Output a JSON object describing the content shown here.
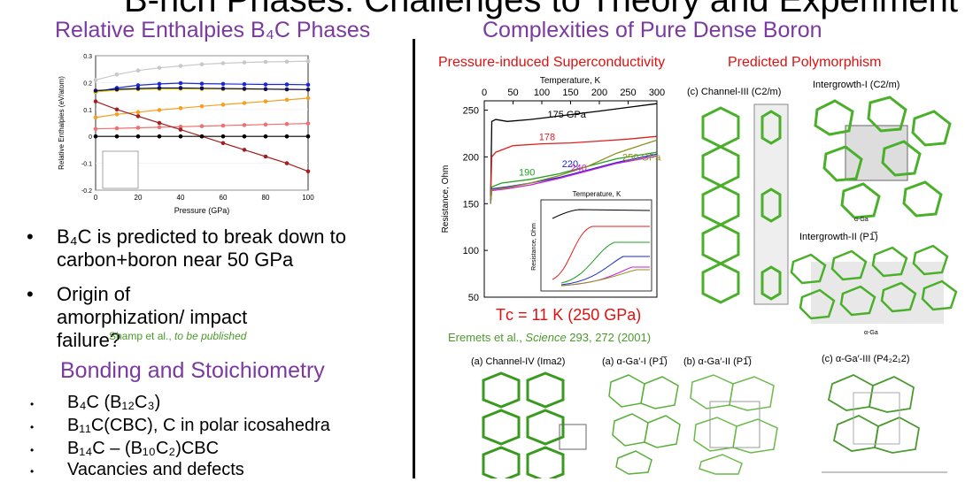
{
  "slide": {
    "title": "B-rich Phases: Challenges to Theory and Experiment"
  },
  "left": {
    "heading_enthalpy": "Relative Enthalpies B₄C Phases",
    "chart_xlabel": "Pressure (GPa)",
    "chart_ylabel": "Relative Enthalpies (eV/atom)",
    "bullet1": "B₄C is predicted to break down to carbon+boron near 50 GPa",
    "bullet2": "Origin of amorphization/ impact failure?",
    "citation_shamp_author": "Shamp et al., ",
    "citation_shamp_note": "to be published",
    "heading_bonding": "Bonding and Stoichiometry",
    "stoich1": "B₄C (B₁₂C₃)",
    "stoich2": "B₁₁C(CBC), C in polar icosahedra",
    "stoich3": "B₁₄C – (B₁₀C₂)CBC",
    "stoich4": "Vacancies and defects"
  },
  "right": {
    "heading": "Complexities of Pure Dense Boron",
    "subhead_superconductivity": "Pressure-induced Superconductivity",
    "subhead_polymorphism": "Predicted Polymorphism",
    "tc_label": "Tᴄ = 11 K (250 GPa)",
    "citation_eremets_author": "Eremets et al., ",
    "citation_eremets_journal": "Science",
    "citation_eremets_ref": " 293, 272 (2001)",
    "graph_xlabel": "Temperature, K",
    "graph_ylabel": "Resistance, Ohm",
    "inset_xlabel": "Temperature, K",
    "inset_ylabel": "Resistance, Ohm",
    "struct_channel3": "(c) Channel-III (C2/m)",
    "struct_intergrowth1": "Intergrowth-I (C2/m)",
    "struct_intergrowth2": "Intergrowth-II (P1̅)",
    "struct_channel4": "(a) Channel-IV (Ima2)",
    "struct_aga1": "(a) α-Ga′-I (P1̅)",
    "struct_aga2": "(b) α-Ga′-II (P1̅)",
    "struct_aga3": "(c) α-Ga′-III (P4₂2₁2)",
    "aga_label": "α-Ga"
  },
  "chart_data": [
    {
      "type": "line",
      "title": "",
      "xlabel": "Pressure (GPa)",
      "ylabel": "Relative Enthalpies (eV/atom)",
      "xlim": [
        0,
        100
      ],
      "ylim": [
        -0.2,
        0.3
      ],
      "xticks": [
        "0",
        "20",
        "40",
        "60",
        "80",
        "100"
      ],
      "yticks": [
        "-0.2",
        "-0.1",
        "0",
        "0.1",
        "0.2",
        "0.3"
      ],
      "series": [
        {
          "color": "#c8c8c8",
          "x": [
            0,
            10,
            20,
            30,
            40,
            50,
            60,
            70,
            80,
            90,
            100
          ],
          "y": [
            0.21,
            0.23,
            0.245,
            0.255,
            0.262,
            0.268,
            0.272,
            0.275,
            0.277,
            0.278,
            0.28
          ]
        },
        {
          "color": "#1a2ad0",
          "x": [
            0,
            10,
            20,
            30,
            40,
            50,
            60,
            70,
            80,
            90,
            100
          ],
          "y": [
            0.165,
            0.18,
            0.19,
            0.195,
            0.198,
            0.196,
            0.195,
            0.194,
            0.193,
            0.193,
            0.192
          ]
        },
        {
          "color": "#e8d000",
          "x": [
            0,
            10,
            20,
            30,
            40,
            50,
            60,
            70,
            80,
            90,
            100
          ],
          "y": [
            0.165,
            0.172,
            0.175,
            0.176,
            0.177,
            0.176,
            0.176,
            0.175,
            0.175,
            0.174,
            0.174
          ]
        },
        {
          "color": "#101060",
          "x": [
            0,
            10,
            20,
            30,
            40,
            50,
            60,
            70,
            80,
            90,
            100
          ],
          "y": [
            0.17,
            0.175,
            0.178,
            0.18,
            0.18,
            0.179,
            0.178,
            0.177,
            0.176,
            0.175,
            0.174
          ]
        },
        {
          "color": "#f5a020",
          "x": [
            0,
            10,
            20,
            30,
            40,
            50,
            60,
            70,
            80,
            90,
            100
          ],
          "y": [
            0.07,
            0.082,
            0.09,
            0.098,
            0.105,
            0.112,
            0.118,
            0.124,
            0.13,
            0.136,
            0.142
          ]
        },
        {
          "color": "#f07070",
          "x": [
            0,
            10,
            20,
            30,
            40,
            50,
            60,
            70,
            80,
            90,
            100
          ],
          "y": [
            0.028,
            0.03,
            0.032,
            0.034,
            0.036,
            0.038,
            0.04,
            0.042,
            0.044,
            0.046,
            0.048
          ]
        },
        {
          "color": "#a02020",
          "x": [
            0,
            10,
            20,
            30,
            40,
            50,
            60,
            70,
            80,
            90,
            100
          ],
          "y": [
            0.13,
            0.1,
            0.075,
            0.05,
            0.025,
            0.0,
            -0.025,
            -0.05,
            -0.075,
            -0.1,
            -0.13
          ]
        },
        {
          "color": "#000000",
          "x": [
            0,
            10,
            20,
            30,
            40,
            50,
            60,
            70,
            80,
            90,
            100
          ],
          "y": [
            0,
            0,
            0,
            0,
            0,
            0,
            0,
            0,
            0,
            0,
            0
          ]
        }
      ]
    },
    {
      "type": "line",
      "title": "",
      "xlabel": "Temperature, K",
      "ylabel": "Resistance, Ohm",
      "xlim": [
        0,
        300
      ],
      "ylim": [
        50,
        260
      ],
      "xticks": [
        "0",
        "50",
        "100",
        "150",
        "200",
        "250",
        "300"
      ],
      "yticks": [
        "50",
        "100",
        "150",
        "200",
        "250"
      ],
      "series": [
        {
          "name": "175 GPa",
          "color": "#000000",
          "x": [
            11,
            13,
            20,
            40,
            80,
            120,
            160,
            200,
            250,
            300
          ],
          "y": [
            150,
            238,
            240,
            238,
            240,
            243,
            246,
            249,
            253,
            257
          ]
        },
        {
          "name": "178",
          "color": "#e02020",
          "x": [
            11,
            13,
            20,
            50,
            100,
            150,
            200,
            250,
            300
          ],
          "y": [
            155,
            200,
            205,
            212,
            214,
            215,
            217,
            219,
            222
          ]
        },
        {
          "name": "190",
          "color": "#20a020",
          "x": [
            11,
            13,
            30,
            80,
            130,
            180,
            230,
            300
          ],
          "y": [
            155,
            168,
            172,
            176,
            182,
            190,
            198,
            205
          ]
        },
        {
          "name": "220",
          "color": "#1a2ad0",
          "x": [
            11,
            13,
            40,
            80,
            130,
            180,
            230,
            300
          ],
          "y": [
            150,
            166,
            168,
            172,
            178,
            186,
            194,
            203
          ]
        },
        {
          "name": "240",
          "color": "#d020d0",
          "x": [
            11,
            13,
            40,
            80,
            130,
            180,
            230,
            300
          ],
          "y": [
            150,
            164,
            166,
            170,
            177,
            185,
            193,
            201
          ]
        },
        {
          "name": "250 GPa",
          "color": "#909020",
          "x": [
            11,
            13,
            40,
            80,
            130,
            180,
            230,
            300
          ],
          "y": [
            150,
            165,
            167,
            172,
            180,
            190,
            204,
            218
          ]
        }
      ]
    }
  ]
}
